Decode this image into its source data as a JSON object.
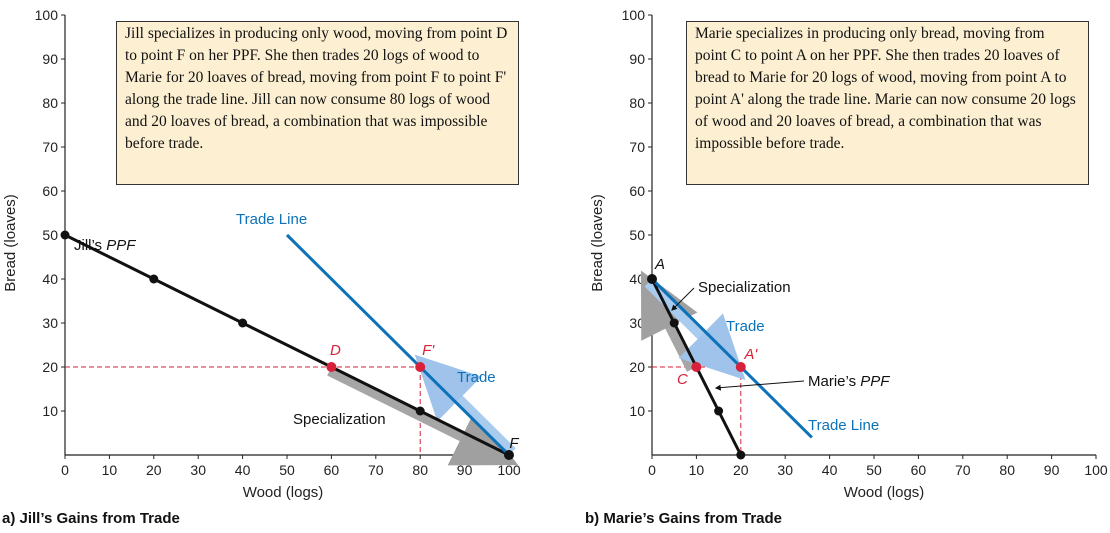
{
  "chart_data": [
    {
      "type": "line",
      "panel": "a",
      "caption": "a) Jill’s Gains from Trade",
      "xlabel": "Wood (logs)",
      "ylabel": "Bread (loaves)",
      "xlim": [
        0,
        100
      ],
      "ylim": [
        0,
        100
      ],
      "x_ticks": [
        "0",
        "10",
        "20",
        "30",
        "40",
        "50",
        "60",
        "70",
        "80",
        "90",
        "100"
      ],
      "y_ticks": [
        "10",
        "20",
        "30",
        "40",
        "50",
        "60",
        "70",
        "80",
        "90",
        "100"
      ],
      "x_highlight_tick": "80",
      "y_highlight_tick": "20",
      "note": "Jill specializes in producing only wood, moving from point D to point F on her PPF. She then trades 20 logs of wood to Marie for 20 loaves of bread, moving from point F to point F' along the trade line. Jill can now consume 80 logs of wood and 20 loaves of bread, a combination that was impossible before trade.",
      "series": [
        {
          "name": "Jill’s PPF",
          "color": "#111111",
          "points": [
            [
              0,
              50
            ],
            [
              20,
              40
            ],
            [
              40,
              30
            ],
            [
              60,
              20
            ],
            [
              80,
              10
            ],
            [
              100,
              0
            ]
          ]
        },
        {
          "name": "Trade Line",
          "color": "#0d72b9",
          "points": [
            [
              50,
              50
            ],
            [
              100,
              0
            ]
          ]
        }
      ],
      "labeled_points": [
        {
          "label": "D",
          "x": 60,
          "y": 20,
          "color": "#d8213a"
        },
        {
          "label": "F'",
          "x": 80,
          "y": 20,
          "color": "#d8213a"
        },
        {
          "label": "F",
          "x": 100,
          "y": 0,
          "color": "#111111"
        }
      ],
      "arrows": [
        {
          "label": "Specialization",
          "from": [
            60,
            20
          ],
          "to": [
            100,
            0
          ]
        },
        {
          "label": "Trade",
          "from": [
            100,
            0
          ],
          "to": [
            80,
            20
          ]
        }
      ],
      "ppf_label_prefix": "Jill’s",
      "ppf_label_emph": "PPF",
      "trade_line_label": "Trade Line"
    },
    {
      "type": "line",
      "panel": "b",
      "caption": "b) Marie’s Gains from Trade",
      "xlabel": "Wood (logs)",
      "ylabel": "Bread (loaves)",
      "xlim": [
        0,
        100
      ],
      "ylim": [
        0,
        100
      ],
      "x_ticks": [
        "0",
        "10",
        "20",
        "30",
        "40",
        "50",
        "60",
        "70",
        "80",
        "90",
        "100"
      ],
      "y_ticks": [
        "10",
        "20",
        "30",
        "40",
        "50",
        "60",
        "70",
        "80",
        "90",
        "100"
      ],
      "x_highlight_tick": "20",
      "y_highlight_tick": "20",
      "note": "Marie specializes in producing only bread, moving from point C to point A on her PPF. She then trades 20 loaves of bread to Marie for 20 logs of wood, moving from point A to point A' along the trade line. Marie can now consume 20 logs of wood and 20 loaves of bread, a combination that was impossible before trade.",
      "series": [
        {
          "name": "Marie’s PPF",
          "color": "#111111",
          "points": [
            [
              0,
              40
            ],
            [
              5,
              30
            ],
            [
              10,
              20
            ],
            [
              15,
              10
            ],
            [
              20,
              0
            ]
          ]
        },
        {
          "name": "Trade Line",
          "color": "#0d72b9",
          "points": [
            [
              0,
              40
            ],
            [
              36,
              4
            ]
          ]
        }
      ],
      "labeled_points": [
        {
          "label": "A",
          "x": 0,
          "y": 40,
          "color": "#111111"
        },
        {
          "label": "C",
          "x": 10,
          "y": 20,
          "color": "#d8213a"
        },
        {
          "label": "A'",
          "x": 20,
          "y": 20,
          "color": "#d8213a"
        }
      ],
      "arrows": [
        {
          "label": "Specialization",
          "from": [
            10,
            20
          ],
          "to": [
            0,
            40
          ]
        },
        {
          "label": "Trade",
          "from": [
            0,
            40
          ],
          "to": [
            20,
            20
          ]
        }
      ],
      "ppf_label_prefix": "Marie’s",
      "ppf_label_emph": "PPF",
      "trade_line_label": "Trade Line"
    }
  ]
}
